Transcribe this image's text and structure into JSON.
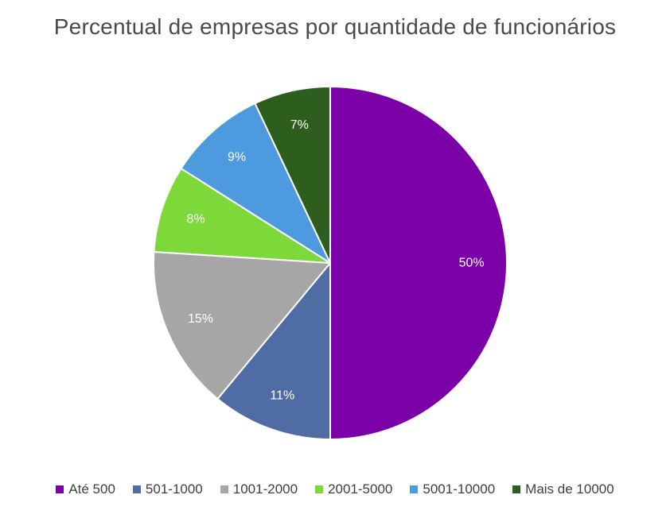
{
  "chart_data": {
    "type": "pie",
    "title": "Percentual de empresas por quantidade de funcionários",
    "legend_position": "bottom",
    "slices": [
      {
        "label": "Até 500",
        "value": 50,
        "display": "50%",
        "color": "#7B00A8"
      },
      {
        "label": "501-1000",
        "value": 11,
        "display": "11%",
        "color": "#4F6CA5"
      },
      {
        "label": "1001-2000",
        "value": 15,
        "display": "15%",
        "color": "#A6A6A6"
      },
      {
        "label": "2001-5000",
        "value": 8,
        "display": "8%",
        "color": "#7DD83A"
      },
      {
        "label": "5001-10000",
        "value": 9,
        "display": "9%",
        "color": "#4D9ADE"
      },
      {
        "label": "Mais de 10000",
        "value": 7,
        "display": "7%",
        "color": "#2E5E1E"
      }
    ]
  }
}
